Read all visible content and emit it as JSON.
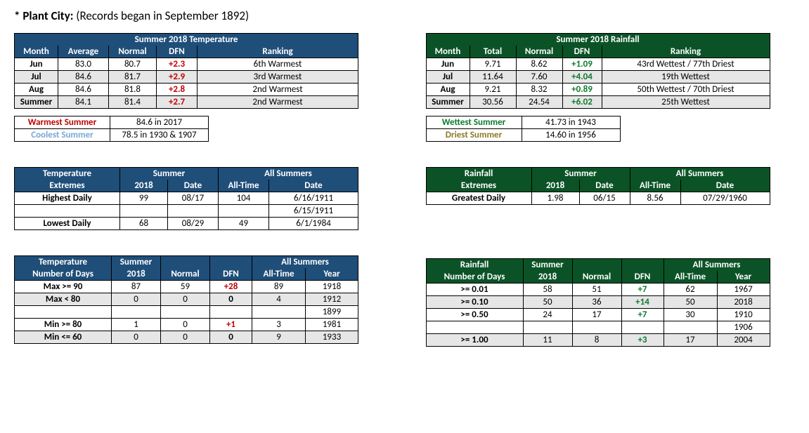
{
  "header": {
    "star": "*",
    "city": "Plant City:",
    "note": "(Records began in September 1892)"
  },
  "colors": {
    "blue": "#1f4e79",
    "green": "#0b5327",
    "shade": "#e6e6e6",
    "red": "#c00000",
    "greenv": "#0b7a2e",
    "cool": "#7aa6d6",
    "dry": "#8a7a2e"
  },
  "temp": {
    "caption": "Summer 2018 Temperature",
    "headers": [
      "Month",
      "Average",
      "Normal",
      "DFN",
      "Ranking"
    ],
    "rows": [
      {
        "m": "Jun",
        "avg": "83.0",
        "nrm": "80.7",
        "dfn": "+2.3",
        "rank": "6th Warmest",
        "shade": false
      },
      {
        "m": "Jul",
        "avg": "84.6",
        "nrm": "81.7",
        "dfn": "+2.9",
        "rank": "3rd Warmest",
        "shade": true
      },
      {
        "m": "Aug",
        "avg": "84.6",
        "nrm": "81.8",
        "dfn": "+2.8",
        "rank": "2nd Warmest",
        "shade": false
      },
      {
        "m": "Summer",
        "avg": "84.1",
        "nrm": "81.4",
        "dfn": "+2.7",
        "rank": "2nd Warmest",
        "shade": true
      }
    ],
    "records": [
      {
        "label": "Warmest Summer",
        "cls": "rec-warm",
        "val": "84.6 in 2017"
      },
      {
        "label": "Coolest Summer",
        "cls": "rec-cool",
        "val": "78.5 in 1930 & 1907"
      }
    ]
  },
  "rain": {
    "caption": "Summer 2018 Rainfall",
    "headers": [
      "Month",
      "Total",
      "Normal",
      "DFN",
      "Ranking"
    ],
    "rows": [
      {
        "m": "Jun",
        "tot": "9.71",
        "nrm": "8.62",
        "dfn": "+1.09",
        "rank": "43rd Wettest / 77th Driest",
        "shade": false
      },
      {
        "m": "Jul",
        "tot": "11.64",
        "nrm": "7.60",
        "dfn": "+4.04",
        "rank": "19th Wettest",
        "shade": true
      },
      {
        "m": "Aug",
        "tot": "9.21",
        "nrm": "8.32",
        "dfn": "+0.89",
        "rank": "50th Wettest / 70th Driest",
        "shade": false
      },
      {
        "m": "Summer",
        "tot": "30.56",
        "nrm": "24.54",
        "dfn": "+6.02",
        "rank": "25th Wettest",
        "shade": true
      }
    ],
    "records": [
      {
        "label": "Wettest Summer",
        "cls": "rec-wet",
        "val": "41.73 in 1943"
      },
      {
        "label": "Driest Summer",
        "cls": "rec-dry",
        "val": "14.60 in 1956"
      }
    ]
  },
  "textremes": {
    "h1a": "Temperature",
    "h1b": "Extremes",
    "h2a": "Summer",
    "h2b": "2018",
    "h2c": "Date",
    "h3a": "All Summers",
    "h3b": "All-Time",
    "h3c": "Date",
    "rows": [
      {
        "lbl": "Highest Daily",
        "v18": "99",
        "d18": "08/17",
        "vat": "104",
        "dat": "6/16/1911"
      },
      {
        "lbl": "",
        "v18": "",
        "d18": "",
        "vat": "",
        "dat": "6/15/1911"
      },
      {
        "lbl": "Lowest Daily",
        "v18": "68",
        "d18": "08/29",
        "vat": "49",
        "dat": "6/1/1984"
      }
    ]
  },
  "rextremes": {
    "h1a": "Rainfall",
    "h1b": "Extremes",
    "rows": [
      {
        "lbl": "Greatest Daily",
        "v18": "1.98",
        "d18": "06/15",
        "vat": "8.56",
        "dat": "07/29/1960"
      }
    ]
  },
  "tdays": {
    "h1a": "Temperature",
    "h1b": "Number of Days",
    "h2": "Summer",
    "h2b": "2018",
    "h3": "Normal",
    "h4": "DFN",
    "h5": "All Summers",
    "h5a": "All-Time",
    "h5b": "Year",
    "rows": [
      {
        "lbl": "Max >= 90",
        "v": "87",
        "n": "59",
        "d": "+28",
        "dcls": "red",
        "at": "89",
        "yr": "1918",
        "shade": false
      },
      {
        "lbl": "Max < 80",
        "v": "0",
        "n": "0",
        "d": "0",
        "dcls": "bold",
        "at": "4",
        "yr": "1912",
        "shade": true
      },
      {
        "lbl": "",
        "v": "",
        "n": "",
        "d": "",
        "dcls": "",
        "at": "",
        "yr": "1899",
        "shade": false
      },
      {
        "lbl": "Min >= 80",
        "v": "1",
        "n": "0",
        "d": "+1",
        "dcls": "red",
        "at": "3",
        "yr": "1981",
        "shade": false
      },
      {
        "lbl": "Min <= 60",
        "v": "0",
        "n": "0",
        "d": "0",
        "dcls": "bold",
        "at": "9",
        "yr": "1933",
        "shade": true
      }
    ]
  },
  "rdays": {
    "h1a": "Rainfall",
    "h1b": "Number of Days",
    "rows": [
      {
        "lbl": ">= 0.01",
        "v": "58",
        "n": "51",
        "d": "+7",
        "dcls": "greenv",
        "at": "62",
        "yr": "1967",
        "shade": false
      },
      {
        "lbl": ">= 0.10",
        "v": "50",
        "n": "36",
        "d": "+14",
        "dcls": "greenv",
        "at": "50",
        "yr": "2018",
        "shade": true
      },
      {
        "lbl": ">= 0.50",
        "v": "24",
        "n": "17",
        "d": "+7",
        "dcls": "greenv",
        "at": "30",
        "yr": "1910",
        "shade": false
      },
      {
        "lbl": "",
        "v": "",
        "n": "",
        "d": "",
        "dcls": "",
        "at": "",
        "yr": "1906",
        "shade": false
      },
      {
        "lbl": ">= 1.00",
        "v": "11",
        "n": "8",
        "d": "+3",
        "dcls": "greenv",
        "at": "17",
        "yr": "2004",
        "shade": true
      }
    ]
  }
}
